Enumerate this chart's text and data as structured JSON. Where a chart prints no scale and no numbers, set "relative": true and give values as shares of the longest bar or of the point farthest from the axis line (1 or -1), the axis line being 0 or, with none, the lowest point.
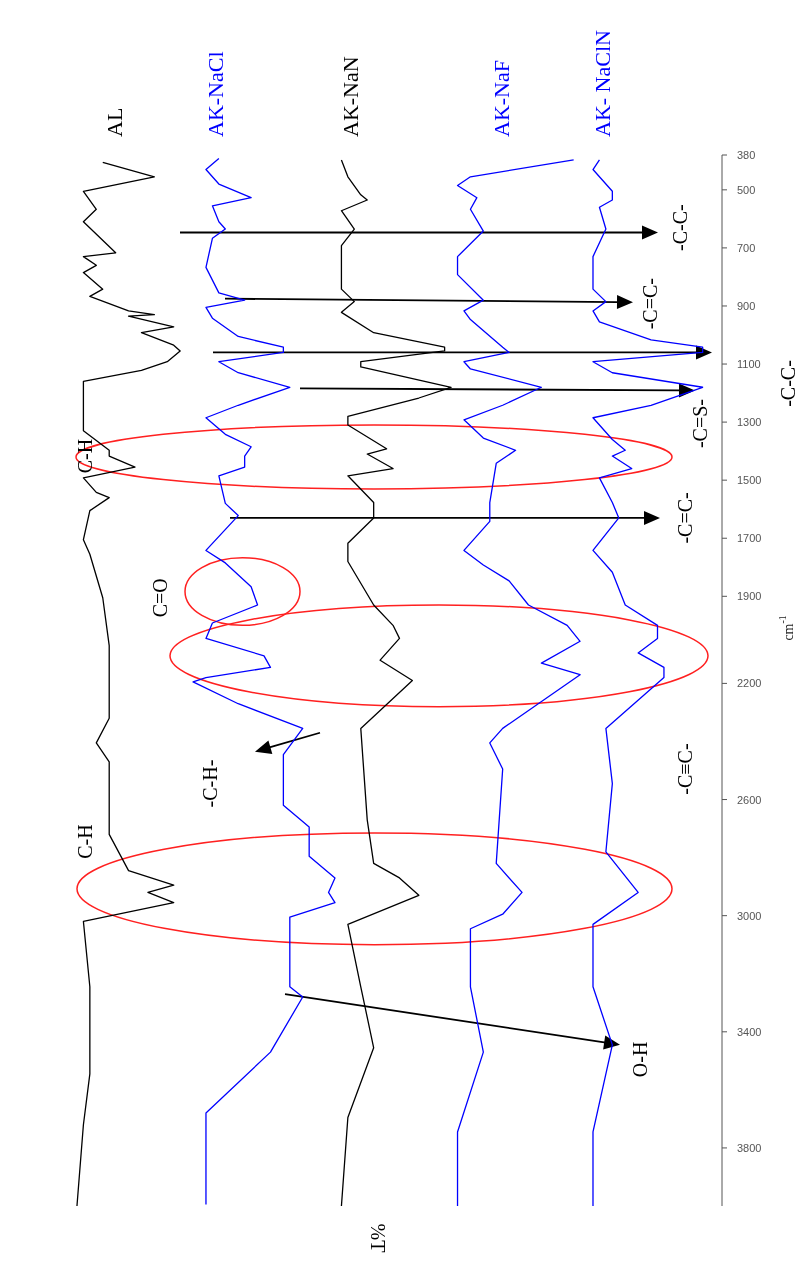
{
  "chart_data": {
    "type": "line",
    "orientation": "horizontal",
    "relative": true,
    "ylabel": "cm$^{-1}$",
    "ylim": [
      4000,
      380
    ],
    "yticks": [
      380,
      500,
      700,
      900,
      1100,
      1300,
      1500,
      1700,
      1900,
      2200,
      2600,
      3000,
      3400,
      3800
    ],
    "tick_labels": "y",
    "marker": "none",
    "series": [
      {
        "name": "AL",
        "color": "#000000",
        "x": [
          405,
          455,
          505,
          567,
          610,
          717,
          730,
          760,
          785,
          842,
          867,
          917,
          930,
          935,
          972,
          992,
          1035,
          1055,
          1092,
          1122,
          1160,
          1267,
          1330,
          1397,
          1417,
          1455,
          1492,
          1542,
          1560,
          1605,
          1705,
          1755,
          1905,
          2070,
          2195,
          2320,
          2405,
          2470,
          2720,
          2845,
          2895,
          2920,
          2955,
          3020,
          3245,
          3545,
          3720,
          4000
        ],
        "values": [
          -0.96,
          -0.88,
          -0.99,
          -0.97,
          -0.99,
          -0.94,
          -0.99,
          -0.97,
          -0.99,
          -0.96,
          -0.98,
          -0.92,
          -0.88,
          -0.92,
          -0.85,
          -0.9,
          -0.85,
          -0.84,
          -0.86,
          -0.9,
          -0.99,
          -0.99,
          -0.99,
          -0.95,
          -0.95,
          -0.91,
          -0.99,
          -0.97,
          -0.95,
          -0.98,
          -0.99,
          -0.98,
          -0.96,
          -0.95,
          -0.95,
          -0.95,
          -0.97,
          -0.95,
          -0.95,
          -0.92,
          -0.85,
          -0.89,
          -0.85,
          -0.99,
          -0.98,
          -0.98,
          -0.99,
          -1
        ]
      },
      {
        "name": "AK-NaCl",
        "color": "#0000ff",
        "x": [
          392,
          430,
          480,
          527,
          555,
          610,
          635,
          667,
          767,
          855,
          880,
          905,
          942,
          1005,
          1042,
          1060,
          1092,
          1130,
          1180,
          1242,
          1285,
          1342,
          1385,
          1417,
          1455,
          1485,
          1580,
          1622,
          1742,
          1785,
          1867,
          1930,
          1992,
          2045,
          2105,
          2145,
          2180,
          2195,
          2270,
          2355,
          2445,
          2620,
          2695,
          2795,
          2870,
          2920,
          2955,
          3005,
          3245,
          3280,
          3470,
          3680,
          3995
        ],
        "values": [
          -0.78,
          -0.8,
          -0.78,
          -0.73,
          -0.79,
          -0.78,
          -0.77,
          -0.79,
          -0.8,
          -0.78,
          -0.74,
          -0.8,
          -0.79,
          -0.75,
          -0.68,
          -0.68,
          -0.78,
          -0.75,
          -0.67,
          -0.75,
          -0.8,
          -0.77,
          -0.73,
          -0.74,
          -0.74,
          -0.78,
          -0.77,
          -0.75,
          -0.8,
          -0.77,
          -0.73,
          -0.72,
          -0.79,
          -0.8,
          -0.71,
          -0.7,
          -0.8,
          -0.82,
          -0.75,
          -0.65,
          -0.68,
          -0.68,
          -0.64,
          -0.64,
          -0.6,
          -0.61,
          -0.6,
          -0.67,
          -0.67,
          -0.65,
          -0.7,
          -0.8,
          -0.8
        ]
      },
      {
        "name": "AK-NaN",
        "color": "#000000",
        "x": [
          397,
          455,
          517,
          535,
          572,
          635,
          692,
          842,
          885,
          922,
          992,
          1042,
          1055,
          1092,
          1110,
          1180,
          1217,
          1280,
          1310,
          1392,
          1410,
          1460,
          1485,
          1577,
          1630,
          1717,
          1780,
          1930,
          2000,
          2045,
          2120,
          2190,
          2355,
          2670,
          2820,
          2870,
          2930,
          3030,
          3245,
          3455,
          3695,
          4000
        ],
        "values": [
          -0.59,
          -0.58,
          -0.56,
          -0.55,
          -0.59,
          -0.57,
          -0.59,
          -0.59,
          -0.57,
          -0.59,
          -0.54,
          -0.43,
          -0.43,
          -0.56,
          -0.56,
          -0.42,
          -0.47,
          -0.58,
          -0.58,
          -0.52,
          -0.55,
          -0.51,
          -0.58,
          -0.54,
          -0.54,
          -0.58,
          -0.58,
          -0.54,
          -0.51,
          -0.5,
          -0.53,
          -0.48,
          -0.56,
          -0.55,
          -0.54,
          -0.5,
          -0.47,
          -0.58,
          -0.56,
          -0.54,
          -0.58,
          -0.59
        ]
      },
      {
        "name": "AK-NaF",
        "color": "#0000ff",
        "x": [
          397,
          455,
          485,
          527,
          567,
          642,
          730,
          792,
          880,
          917,
          947,
          1042,
          1060,
          1092,
          1117,
          1180,
          1242,
          1292,
          1355,
          1397,
          1442,
          1577,
          1642,
          1742,
          1792,
          1847,
          1930,
          2000,
          2055,
          2130,
          2170,
          2355,
          2405,
          2495,
          2820,
          2920,
          2995,
          3045,
          3245,
          3470,
          3745,
          4000
        ],
        "values": [
          -0.23,
          -0.39,
          -0.41,
          -0.38,
          -0.39,
          -0.37,
          -0.41,
          -0.41,
          -0.37,
          -0.4,
          -0.39,
          -0.34,
          -0.33,
          -0.4,
          -0.39,
          -0.28,
          -0.34,
          -0.4,
          -0.37,
          -0.32,
          -0.35,
          -0.36,
          -0.36,
          -0.4,
          -0.37,
          -0.33,
          -0.3,
          -0.24,
          -0.22,
          -0.28,
          -0.22,
          -0.34,
          -0.36,
          -0.34,
          -0.35,
          -0.31,
          -0.34,
          -0.39,
          -0.39,
          -0.37,
          -0.41,
          -0.41
        ]
      },
      {
        "name": "AK- NaClN",
        "color": "#0000ff",
        "x": [
          397,
          430,
          505,
          535,
          560,
          635,
          730,
          842,
          885,
          917,
          955,
          1017,
          1042,
          1060,
          1092,
          1130,
          1180,
          1242,
          1285,
          1360,
          1397,
          1417,
          1460,
          1492,
          1577,
          1630,
          1742,
          1817,
          1930,
          2000,
          2045,
          2095,
          2145,
          2180,
          2355,
          2545,
          2780,
          2920,
          3030,
          3245,
          3445,
          3745,
          4000
        ],
        "values": [
          -0.19,
          -0.2,
          -0.17,
          -0.17,
          -0.19,
          -0.18,
          -0.2,
          -0.2,
          -0.18,
          -0.2,
          -0.19,
          -0.11,
          -0.03,
          -0.03,
          -0.2,
          -0.17,
          -0.03,
          -0.11,
          -0.2,
          -0.17,
          -0.15,
          -0.17,
          -0.14,
          -0.19,
          -0.17,
          -0.16,
          -0.2,
          -0.17,
          -0.15,
          -0.1,
          -0.1,
          -0.13,
          -0.09,
          -0.09,
          -0.18,
          -0.17,
          -0.18,
          -0.13,
          -0.2,
          -0.2,
          -0.17,
          -0.2,
          -0.2
        ]
      }
    ],
    "annotations": [
      "C-H",
      "C-H",
      "C=O",
      "-C-H-",
      "-C≡C-",
      "O-H",
      "-C=C-",
      "-C=S-",
      "-C=C-",
      "-C-C-",
      "-C-C-",
      "%T"
    ]
  }
}
